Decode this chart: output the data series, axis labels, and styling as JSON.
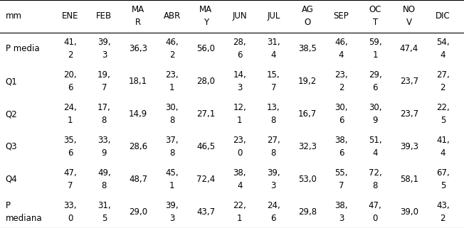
{
  "col_headers_line1": [
    "mm",
    "ENE",
    "FEB",
    "MA",
    "ABR",
    "MA",
    "JUN",
    "JUL",
    "AG",
    "SEP",
    "OC",
    "NO",
    "DIC"
  ],
  "col_headers_line2": [
    "",
    "",
    "",
    "R",
    "",
    "Y",
    "",
    "",
    "O",
    "",
    "T",
    "V",
    ""
  ],
  "rows": [
    {
      "label": [
        "P media",
        ""
      ],
      "values": [
        [
          "41,",
          "2"
        ],
        [
          "39,",
          "3"
        ],
        [
          "36,3",
          ""
        ],
        [
          "46,",
          "2"
        ],
        [
          "56,0",
          ""
        ],
        [
          "28,",
          "6"
        ],
        [
          "31,",
          "4"
        ],
        [
          "38,5",
          ""
        ],
        [
          "46,",
          "4"
        ],
        [
          "59,",
          "1"
        ],
        [
          "47,4",
          ""
        ],
        [
          "54,",
          "4"
        ]
      ]
    },
    {
      "label": [
        "Q1",
        ""
      ],
      "values": [
        [
          "20,",
          "6"
        ],
        [
          "19,",
          "7"
        ],
        [
          "18,1",
          ""
        ],
        [
          "23,",
          "1"
        ],
        [
          "28,0",
          ""
        ],
        [
          "14,",
          "3"
        ],
        [
          "15,",
          "7"
        ],
        [
          "19,2",
          ""
        ],
        [
          "23,",
          "2"
        ],
        [
          "29,",
          "6"
        ],
        [
          "23,7",
          ""
        ],
        [
          "27,",
          "2"
        ]
      ]
    },
    {
      "label": [
        "Q2",
        ""
      ],
      "values": [
        [
          "24,",
          "1"
        ],
        [
          "17,",
          "8"
        ],
        [
          "14,9",
          ""
        ],
        [
          "30,",
          "8"
        ],
        [
          "27,1",
          ""
        ],
        [
          "12,",
          "1"
        ],
        [
          "13,",
          "8"
        ],
        [
          "16,7",
          ""
        ],
        [
          "30,",
          "6"
        ],
        [
          "30,",
          "9"
        ],
        [
          "23,7",
          ""
        ],
        [
          "22,",
          "5"
        ]
      ]
    },
    {
      "label": [
        "Q3",
        ""
      ],
      "values": [
        [
          "35,",
          "6"
        ],
        [
          "33,",
          "9"
        ],
        [
          "28,6",
          ""
        ],
        [
          "37,",
          "8"
        ],
        [
          "46,5",
          ""
        ],
        [
          "23,",
          "0"
        ],
        [
          "27,",
          "8"
        ],
        [
          "32,3",
          ""
        ],
        [
          "38,",
          "6"
        ],
        [
          "51,",
          "4"
        ],
        [
          "39,3",
          ""
        ],
        [
          "41,",
          "4"
        ]
      ]
    },
    {
      "label": [
        "Q4",
        ""
      ],
      "values": [
        [
          "47,",
          "7"
        ],
        [
          "49,",
          "8"
        ],
        [
          "48,7",
          ""
        ],
        [
          "45,",
          "1"
        ],
        [
          "72,4",
          ""
        ],
        [
          "38,",
          "4"
        ],
        [
          "39,",
          "3"
        ],
        [
          "53,0",
          ""
        ],
        [
          "55,",
          "7"
        ],
        [
          "72,",
          "8"
        ],
        [
          "58,1",
          ""
        ],
        [
          "67,",
          "5"
        ]
      ]
    },
    {
      "label": [
        "P",
        "mediana"
      ],
      "values": [
        [
          "33,",
          "0"
        ],
        [
          "31,",
          "5"
        ],
        [
          "29,0",
          ""
        ],
        [
          "39,",
          "3"
        ],
        [
          "43,7",
          ""
        ],
        [
          "22,",
          "1"
        ],
        [
          "24,",
          "6"
        ],
        [
          "29,8",
          ""
        ],
        [
          "38,",
          "3"
        ],
        [
          "47,",
          "0"
        ],
        [
          "39,0",
          ""
        ],
        [
          "43,",
          "2"
        ]
      ]
    }
  ],
  "bg_color": "#ffffff",
  "text_color": "#000000",
  "font_size": 8.5,
  "figsize": [
    6.52,
    3.21
  ],
  "dpi": 100
}
